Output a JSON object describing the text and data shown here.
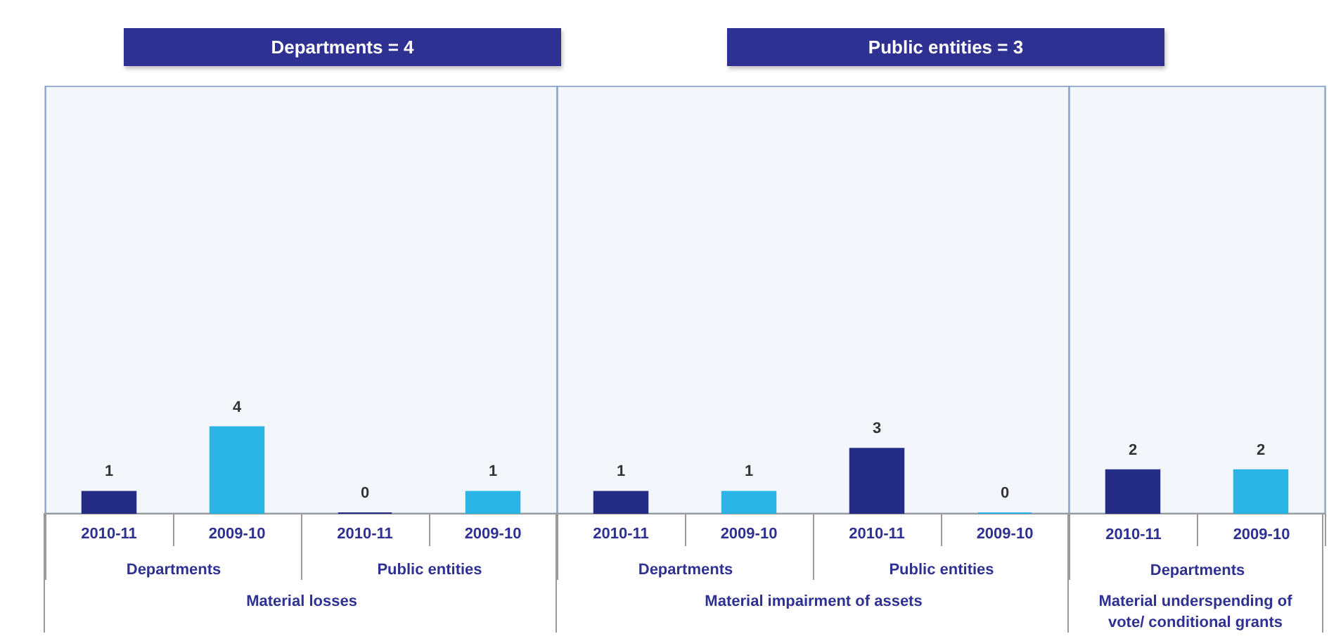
{
  "chart_data": [
    {
      "type": "bar",
      "title": "Departments = 4",
      "xlabel": "Material losses",
      "categories": [
        "Departments",
        "Public entities"
      ],
      "series": [
        {
          "name": "2010-11",
          "color": "#252c86",
          "values": [
            1,
            0
          ]
        },
        {
          "name": "2009-10",
          "color": "#2ab4e6",
          "values": [
            4,
            1
          ]
        }
      ],
      "tick_labels": "x",
      "data_labels": true
    },
    {
      "type": "bar",
      "title": "Public entities = 3",
      "xlabel": "Material impairment of assets",
      "categories": [
        "Departments",
        "Public entities"
      ],
      "series": [
        {
          "name": "2010-11",
          "color": "#252c86",
          "values": [
            1,
            3
          ]
        },
        {
          "name": "2009-10",
          "color": "#2ab4e6",
          "values": [
            1,
            0
          ]
        }
      ],
      "tick_labels": "x",
      "data_labels": true
    },
    {
      "type": "bar",
      "xlabel": "Departments",
      "annotations": [
        "Material underspending of vote/ conditional grants"
      ],
      "categories": [
        "2010-11",
        "2009-10"
      ],
      "values": [
        2,
        2
      ],
      "colors": [
        "#252c86",
        "#2ab4e6"
      ],
      "tick_labels": "x",
      "data_labels": true
    }
  ]
}
